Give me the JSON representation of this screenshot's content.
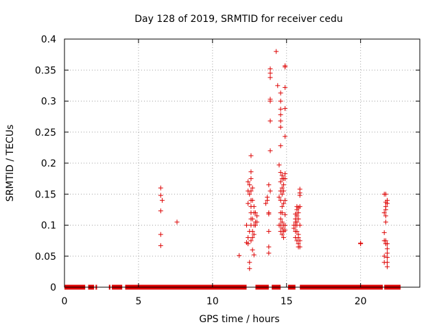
{
  "chart_data": {
    "type": "scatter",
    "title": "Day 128 of 2019, SRMTID for receiver cedu",
    "xlabel": "GPS time / hours",
    "ylabel": "SRMTID / TECUs",
    "xlim": [
      0,
      24
    ],
    "ylim": [
      0,
      0.4
    ],
    "xticks": [
      0,
      5,
      10,
      15,
      20
    ],
    "xtick_labels": [
      "0",
      "5",
      "10",
      "15",
      "20"
    ],
    "yticks": [
      0,
      0.05,
      0.1,
      0.15,
      0.2,
      0.25,
      0.3,
      0.35,
      0.4
    ],
    "ytick_labels": [
      "0",
      "0.05",
      "0.1",
      "0.15",
      "0.2",
      "0.25",
      "0.3",
      "0.35",
      "0.4"
    ],
    "grid": true,
    "marker": "plus",
    "marker_color": "#dd0000",
    "zero_band_segments": [
      [
        0.0,
        1.4
      ],
      [
        1.6,
        2.0
      ],
      [
        2.1,
        2.2
      ],
      [
        3.0,
        3.1
      ],
      [
        3.2,
        3.9
      ],
      [
        4.1,
        4.4
      ],
      [
        4.2,
        12.3
      ],
      [
        12.9,
        13.8
      ],
      [
        14.0,
        14.6
      ],
      [
        15.1,
        15.6
      ],
      [
        15.9,
        21.5
      ],
      [
        21.6,
        22.7
      ]
    ],
    "series": [
      {
        "name": "SRMTID",
        "points": [
          [
            6.5,
            0.16
          ],
          [
            6.5,
            0.148
          ],
          [
            6.6,
            0.14
          ],
          [
            6.5,
            0.123
          ],
          [
            6.5,
            0.085
          ],
          [
            6.5,
            0.067
          ],
          [
            7.6,
            0.105
          ],
          [
            11.8,
            0.051
          ],
          [
            12.3,
            0.1
          ],
          [
            12.3,
            0.072
          ],
          [
            12.4,
            0.07
          ],
          [
            12.4,
            0.08
          ],
          [
            12.4,
            0.135
          ],
          [
            12.4,
            0.155
          ],
          [
            12.4,
            0.17
          ],
          [
            12.5,
            0.165
          ],
          [
            12.5,
            0.15
          ],
          [
            12.5,
            0.09
          ],
          [
            12.5,
            0.04
          ],
          [
            12.5,
            0.03
          ],
          [
            12.6,
            0.212
          ],
          [
            12.6,
            0.186
          ],
          [
            12.6,
            0.175
          ],
          [
            12.6,
            0.155
          ],
          [
            12.6,
            0.14
          ],
          [
            12.6,
            0.13
          ],
          [
            12.6,
            0.12
          ],
          [
            12.6,
            0.11
          ],
          [
            12.6,
            0.1
          ],
          [
            12.6,
            0.075
          ],
          [
            12.7,
            0.16
          ],
          [
            12.7,
            0.14
          ],
          [
            12.7,
            0.11
          ],
          [
            12.7,
            0.09
          ],
          [
            12.7,
            0.08
          ],
          [
            12.7,
            0.06
          ],
          [
            12.8,
            0.13
          ],
          [
            12.8,
            0.12
          ],
          [
            12.8,
            0.1
          ],
          [
            12.8,
            0.085
          ],
          [
            12.8,
            0.052
          ],
          [
            12.9,
            0.12
          ],
          [
            12.9,
            0.105
          ],
          [
            12.9,
            0.1
          ],
          [
            13.0,
            0.115
          ],
          [
            13.0,
            0.105
          ],
          [
            13.6,
            0.135
          ],
          [
            13.7,
            0.145
          ],
          [
            13.7,
            0.14
          ],
          [
            13.8,
            0.165
          ],
          [
            13.8,
            0.12
          ],
          [
            13.8,
            0.118
          ],
          [
            13.8,
            0.09
          ],
          [
            13.8,
            0.065
          ],
          [
            13.8,
            0.055
          ],
          [
            13.9,
            0.352
          ],
          [
            13.9,
            0.345
          ],
          [
            13.9,
            0.338
          ],
          [
            13.9,
            0.303
          ],
          [
            13.9,
            0.3
          ],
          [
            13.9,
            0.268
          ],
          [
            13.9,
            0.22
          ],
          [
            13.9,
            0.155
          ],
          [
            14.3,
            0.38
          ],
          [
            14.4,
            0.325
          ],
          [
            14.5,
            0.197
          ],
          [
            14.5,
            0.145
          ],
          [
            14.5,
            0.1
          ],
          [
            14.6,
            0.313
          ],
          [
            14.6,
            0.3
          ],
          [
            14.6,
            0.287
          ],
          [
            14.6,
            0.278
          ],
          [
            14.6,
            0.268
          ],
          [
            14.6,
            0.258
          ],
          [
            14.6,
            0.228
          ],
          [
            14.6,
            0.185
          ],
          [
            14.6,
            0.17
          ],
          [
            14.6,
            0.155
          ],
          [
            14.6,
            0.14
          ],
          [
            14.6,
            0.12
          ],
          [
            14.6,
            0.11
          ],
          [
            14.6,
            0.1
          ],
          [
            14.6,
            0.09
          ],
          [
            14.7,
            0.18
          ],
          [
            14.7,
            0.175
          ],
          [
            14.7,
            0.16
          ],
          [
            14.7,
            0.15
          ],
          [
            14.7,
            0.13
          ],
          [
            14.7,
            0.12
          ],
          [
            14.7,
            0.105
          ],
          [
            14.7,
            0.095
          ],
          [
            14.7,
            0.085
          ],
          [
            14.8,
            0.175
          ],
          [
            14.8,
            0.165
          ],
          [
            14.8,
            0.155
          ],
          [
            14.8,
            0.135
          ],
          [
            14.8,
            0.1
          ],
          [
            14.8,
            0.09
          ],
          [
            14.8,
            0.08
          ],
          [
            14.9,
            0.357
          ],
          [
            14.9,
            0.355
          ],
          [
            14.9,
            0.322
          ],
          [
            14.9,
            0.288
          ],
          [
            14.9,
            0.243
          ],
          [
            14.9,
            0.183
          ],
          [
            14.9,
            0.175
          ],
          [
            14.9,
            0.14
          ],
          [
            14.9,
            0.117
          ],
          [
            14.9,
            0.1
          ],
          [
            14.9,
            0.092
          ],
          [
            15.5,
            0.1
          ],
          [
            15.5,
            0.095
          ],
          [
            15.6,
            0.118
          ],
          [
            15.6,
            0.11
          ],
          [
            15.6,
            0.105
          ],
          [
            15.6,
            0.1
          ],
          [
            15.6,
            0.09
          ],
          [
            15.6,
            0.08
          ],
          [
            15.7,
            0.13
          ],
          [
            15.7,
            0.125
          ],
          [
            15.7,
            0.115
          ],
          [
            15.7,
            0.105
          ],
          [
            15.7,
            0.1
          ],
          [
            15.7,
            0.09
          ],
          [
            15.7,
            0.075
          ],
          [
            15.8,
            0.128
          ],
          [
            15.8,
            0.12
          ],
          [
            15.8,
            0.11
          ],
          [
            15.8,
            0.085
          ],
          [
            15.8,
            0.08
          ],
          [
            15.8,
            0.07
          ],
          [
            15.8,
            0.065
          ],
          [
            15.9,
            0.158
          ],
          [
            15.9,
            0.152
          ],
          [
            15.9,
            0.148
          ],
          [
            15.9,
            0.13
          ],
          [
            15.9,
            0.1
          ],
          [
            15.9,
            0.075
          ],
          [
            15.9,
            0.065
          ],
          [
            20.0,
            0.071
          ],
          [
            20.0,
            0.07
          ],
          [
            21.6,
            0.15
          ],
          [
            21.6,
            0.12
          ],
          [
            21.6,
            0.088
          ],
          [
            21.6,
            0.075
          ],
          [
            21.6,
            0.05
          ],
          [
            21.6,
            0.04
          ],
          [
            21.7,
            0.15
          ],
          [
            21.7,
            0.137
          ],
          [
            21.7,
            0.13
          ],
          [
            21.7,
            0.125
          ],
          [
            21.7,
            0.115
          ],
          [
            21.7,
            0.105
          ],
          [
            21.7,
            0.075
          ],
          [
            21.7,
            0.07
          ],
          [
            21.8,
            0.14
          ],
          [
            21.8,
            0.135
          ],
          [
            21.8,
            0.07
          ],
          [
            21.8,
            0.062
          ],
          [
            21.8,
            0.055
          ],
          [
            21.8,
            0.048
          ],
          [
            21.8,
            0.04
          ],
          [
            21.8,
            0.033
          ]
        ]
      }
    ]
  }
}
